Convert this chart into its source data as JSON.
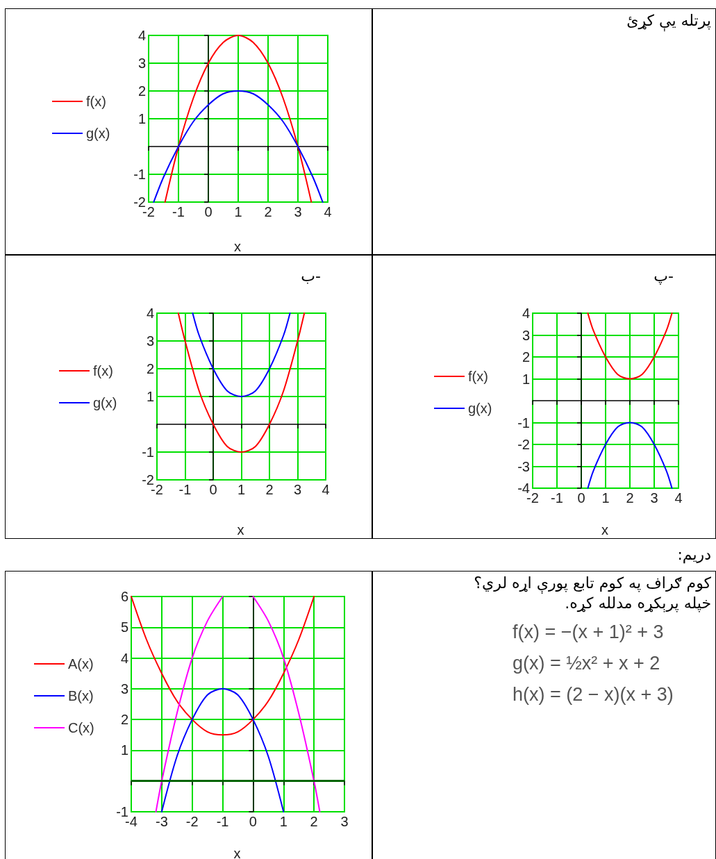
{
  "chart_data": [
    {
      "type": "line",
      "xlabel": "x",
      "xlim": [
        -2,
        4
      ],
      "ylim": [
        -2,
        4
      ],
      "xticks": [
        -2,
        -1,
        0,
        1,
        2,
        3,
        4
      ],
      "yticks": [
        -2,
        -1,
        1,
        2,
        3,
        4
      ],
      "grid": true,
      "legend": "left",
      "marker": "none",
      "series": [
        {
          "name": "f(x)",
          "color": "#ff0000",
          "x": [
            -1.45,
            -1,
            -0.5,
            0,
            0.5,
            1,
            1.5,
            2,
            2.5,
            3,
            3.45
          ],
          "values": [
            -2,
            0,
            1.75,
            3,
            3.75,
            4,
            3.75,
            3,
            1.75,
            0,
            -2
          ]
        },
        {
          "name": "g(x)",
          "color": "#0000ff",
          "x": [
            -1.83,
            -1.5,
            -1,
            -0.5,
            0,
            0.5,
            1,
            1.5,
            2,
            2.5,
            3,
            3.5,
            3.83
          ],
          "values": [
            -2,
            -1.1,
            0,
            0.9,
            1.5,
            1.9,
            2,
            1.9,
            1.5,
            0.9,
            0,
            -1.1,
            -2
          ]
        }
      ]
    },
    {
      "type": "other",
      "annotations": [
        "پرتله يې کړئ"
      ]
    },
    {
      "type": "line",
      "title": "ب-",
      "xlabel": "x",
      "xlim": [
        -2,
        4
      ],
      "ylim": [
        -2,
        4
      ],
      "xticks": [
        -2,
        -1,
        0,
        1,
        2,
        3,
        4
      ],
      "yticks": [
        -2,
        -1,
        1,
        2,
        3,
        4
      ],
      "grid": true,
      "legend": "left",
      "marker": "none",
      "series": [
        {
          "name": "f(x)",
          "color": "#ff0000",
          "x": [
            -1.24,
            -1,
            -0.5,
            0,
            0.5,
            1,
            1.5,
            2,
            2.5,
            3,
            3.24
          ],
          "values": [
            4,
            3,
            1.2,
            0,
            -0.8,
            -1,
            -0.8,
            0,
            1.2,
            3,
            4
          ]
        },
        {
          "name": "g(x)",
          "color": "#0000ff",
          "x": [
            -0.73,
            -0.5,
            0,
            0.5,
            1,
            1.5,
            2,
            2.5,
            2.73
          ],
          "values": [
            4,
            3.2,
            2,
            1.2,
            1,
            1.2,
            2,
            3.2,
            4
          ]
        }
      ]
    },
    {
      "type": "line",
      "title": "پ-",
      "xlabel": "x",
      "xlim": [
        -2,
        4
      ],
      "ylim": [
        -4,
        4
      ],
      "xticks": [
        -2,
        -1,
        0,
        1,
        2,
        3,
        4
      ],
      "yticks": [
        -4,
        -3,
        -2,
        -1,
        1,
        2,
        3,
        4
      ],
      "grid": true,
      "legend": "left",
      "marker": "none",
      "series": [
        {
          "name": "f(x)",
          "color": "#ff0000",
          "x": [
            0.27,
            0.5,
            1,
            1.5,
            2,
            2.5,
            3,
            3.5,
            3.73
          ],
          "values": [
            4,
            3.2,
            2,
            1.2,
            1,
            1.2,
            2,
            3.2,
            4
          ]
        },
        {
          "name": "g(x)",
          "color": "#0000ff",
          "x": [
            0.27,
            0.5,
            1,
            1.5,
            2,
            2.5,
            3,
            3.5,
            3.73
          ],
          "values": [
            -4,
            -3.2,
            -2,
            -1.2,
            -1,
            -1.2,
            -2,
            -3.2,
            -4
          ]
        }
      ]
    },
    {
      "type": "other",
      "annotations": [
        "دريم:"
      ]
    },
    {
      "type": "line",
      "xlabel": "x",
      "xlim": [
        -4,
        3
      ],
      "ylim": [
        -1,
        6
      ],
      "xticks": [
        -4,
        -3,
        -2,
        -1,
        0,
        1,
        2,
        3
      ],
      "yticks": [
        -1,
        1,
        2,
        3,
        4,
        5,
        6
      ],
      "grid": true,
      "legend": "left",
      "marker": "none",
      "ref_lines": [
        {
          "axis": "y",
          "value": 0,
          "color": "#006400"
        }
      ],
      "series": [
        {
          "name": "A(x)",
          "color": "#ff0000",
          "x": [
            -4,
            -3.5,
            -3,
            -2.5,
            -2,
            -1.5,
            -1,
            -0.5,
            0,
            0.5,
            1,
            1.5,
            2
          ],
          "values": [
            6,
            4.6,
            3.5,
            2.6,
            2,
            1.6,
            1.5,
            1.6,
            2,
            2.6,
            3.5,
            4.6,
            6
          ]
        },
        {
          "name": "B(x)",
          "color": "#0000ff",
          "x": [
            -3,
            -2.5,
            -2,
            -1.5,
            -1,
            -0.5,
            0,
            0.5,
            1
          ],
          "values": [
            -1,
            0.8,
            2,
            2.8,
            3,
            2.8,
            2,
            0.8,
            -1
          ]
        },
        {
          "name": "C(x)",
          "color": "#ff00ff",
          "x": [
            -3.19,
            -3,
            -2.5,
            -2,
            -1.5,
            -1,
            -0.5,
            0,
            0.5,
            1,
            1.5,
            2,
            2.19
          ],
          "values": [
            -1,
            0,
            2.2,
            4,
            5.2,
            6,
            null,
            6,
            5.2,
            4,
            2.2,
            0,
            -1
          ]
        }
      ]
    },
    {
      "type": "other",
      "annotations": [
        "کوم ګراف په کوم تابع پورې اړه لري؟",
        "خپله پرېکړه مدلله کړه.",
        "f(x) = −(x + 1)² + 3",
        "g(x) = ½x² + x + 2",
        "h(x) = (2 − x)(x + 3)"
      ]
    }
  ]
}
